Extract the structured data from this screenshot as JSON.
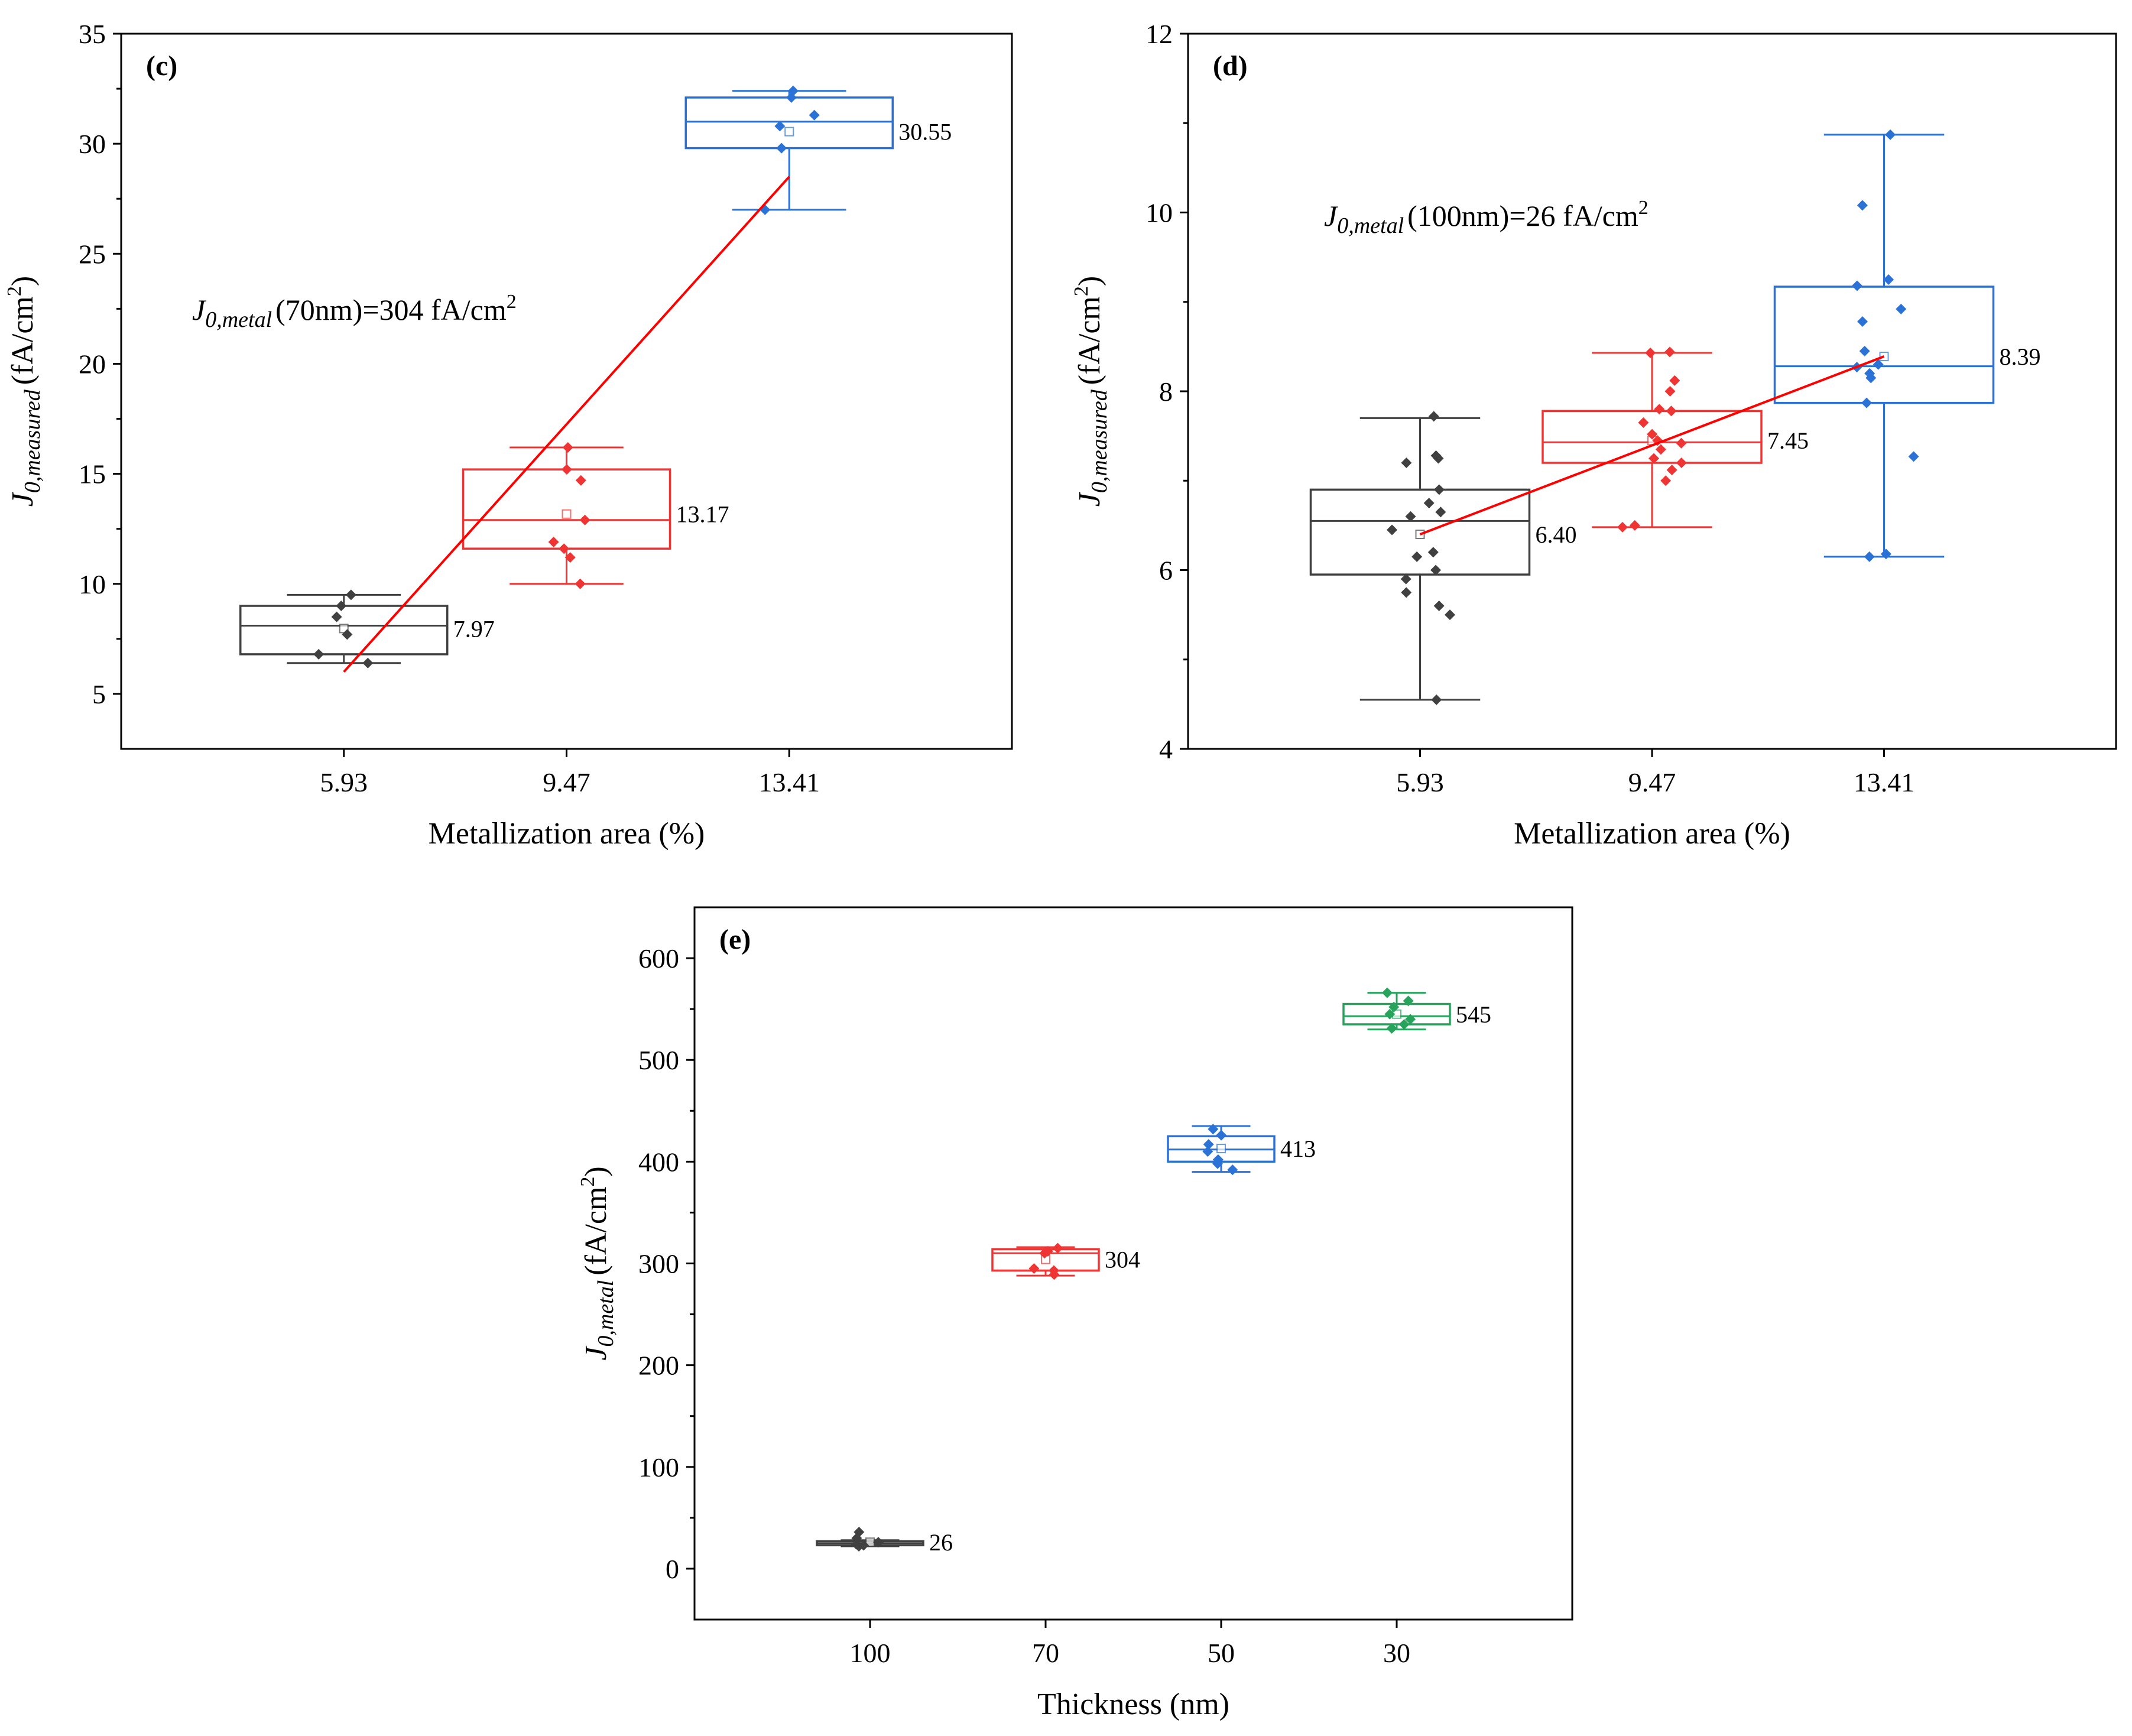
{
  "figure": {
    "colors": {
      "dark": "#404040",
      "red": "#ef3434",
      "blue": "#2a72d6",
      "green": "#27a35c",
      "fit": "#ff0000",
      "axis": "#000000"
    }
  },
  "chart_data": [
    {
      "type": "box",
      "panel_label": "(c)",
      "xlabel": "Metallization area (%)",
      "ylabel": {
        "main": "J",
        "sub": "0,measured",
        "unit": "(fA/cm",
        "sup": "2",
        "close": ")"
      },
      "annotation": {
        "main": "J",
        "sub": "0,metal",
        "rest": "(70nm)=304 fA/cm",
        "sup": "2"
      },
      "categories": [
        "5.93",
        "9.47",
        "13.41"
      ],
      "ylim": [
        2.5,
        35
      ],
      "yticks": [
        5,
        10,
        15,
        20,
        25,
        30,
        35
      ],
      "y_tick_labels": [
        "5",
        "10",
        "15",
        "20",
        "25",
        "30",
        "35"
      ],
      "grid": false,
      "boxes": [
        {
          "category": "5.93",
          "color": "dark",
          "whisker_low": 6.4,
          "q1": 6.8,
          "median": 8.1,
          "q3": 9.0,
          "whisker_high": 9.5,
          "mean": 7.97,
          "mean_label": "7.97",
          "points": [
            6.4,
            6.8,
            7.7,
            8.5,
            9.0,
            9.5
          ]
        },
        {
          "category": "9.47",
          "color": "red",
          "whisker_low": 10.0,
          "q1": 11.6,
          "median": 12.9,
          "q3": 15.2,
          "whisker_high": 16.2,
          "mean": 13.17,
          "mean_label": "13.17",
          "points": [
            10.0,
            11.2,
            11.6,
            11.9,
            12.9,
            14.7,
            15.2,
            16.2
          ]
        },
        {
          "category": "13.41",
          "color": "blue",
          "whisker_low": 27.0,
          "q1": 29.8,
          "median": 31.0,
          "q3": 32.1,
          "whisker_high": 32.4,
          "mean": 30.55,
          "mean_label": "30.55",
          "points": [
            27.0,
            29.8,
            30.8,
            31.3,
            32.1,
            32.4
          ]
        }
      ],
      "fit_line": {
        "x": [
          "5.93",
          "13.41"
        ],
        "y": [
          6.0,
          28.5
        ]
      }
    },
    {
      "type": "box",
      "panel_label": "(d)",
      "xlabel": "Metallization area (%)",
      "ylabel": {
        "main": "J",
        "sub": "0,measured",
        "unit": "(fA/cm",
        "sup": "2",
        "close": ")"
      },
      "annotation": {
        "main": "J",
        "sub": "0,metal",
        "rest": "(100nm)=26 fA/cm",
        "sup": "2"
      },
      "categories": [
        "5.93",
        "9.47",
        "13.41"
      ],
      "ylim": [
        4,
        12
      ],
      "yticks": [
        4,
        6,
        8,
        10,
        12
      ],
      "y_tick_labels": [
        "4",
        "6",
        "8",
        "10",
        "12"
      ],
      "grid": false,
      "boxes": [
        {
          "category": "5.93",
          "color": "dark",
          "whisker_low": 4.55,
          "q1": 5.95,
          "median": 6.55,
          "q3": 6.9,
          "whisker_high": 7.7,
          "mean": 6.4,
          "mean_label": "6.40",
          "points": [
            4.55,
            5.5,
            5.6,
            5.75,
            5.9,
            6.0,
            6.15,
            6.2,
            6.45,
            6.6,
            6.65,
            6.75,
            6.9,
            7.2,
            7.25,
            7.28,
            7.72
          ]
        },
        {
          "category": "9.47",
          "color": "red",
          "whisker_low": 6.48,
          "q1": 7.2,
          "median": 7.43,
          "q3": 7.78,
          "whisker_high": 8.43,
          "mean": 7.45,
          "mean_label": "7.45",
          "points": [
            6.48,
            6.5,
            7.0,
            7.12,
            7.2,
            7.25,
            7.35,
            7.42,
            7.45,
            7.52,
            7.65,
            7.78,
            7.8,
            8.0,
            8.12,
            8.43,
            8.44
          ]
        },
        {
          "category": "13.41",
          "color": "blue",
          "whisker_low": 6.15,
          "q1": 7.87,
          "median": 8.28,
          "q3": 9.17,
          "whisker_high": 10.87,
          "mean": 8.39,
          "mean_label": "8.39",
          "points": [
            6.15,
            6.18,
            7.27,
            7.87,
            8.15,
            8.2,
            8.27,
            8.3,
            8.45,
            8.78,
            8.92,
            9.18,
            9.25,
            10.08,
            10.87
          ]
        }
      ],
      "fit_line": {
        "x": [
          "5.93",
          "13.41"
        ],
        "y": [
          6.4,
          8.39
        ]
      }
    },
    {
      "type": "box",
      "panel_label": "(e)",
      "xlabel": "Thickness  (nm)",
      "ylabel": {
        "main": "J",
        "sub": "0,metal",
        "unit": "(fA/cm",
        "sup": "2",
        "close": ")"
      },
      "categories": [
        "100",
        "70",
        "50",
        "30"
      ],
      "ylim": [
        -50,
        650
      ],
      "yticks": [
        0,
        100,
        200,
        300,
        400,
        500,
        600
      ],
      "y_tick_labels": [
        "0",
        "100",
        "200",
        "300",
        "400",
        "500",
        "600"
      ],
      "grid": false,
      "boxes": [
        {
          "category": "100",
          "color": "dark",
          "whisker_low": 22,
          "q1": 23,
          "median": 25,
          "q3": 27,
          "whisker_high": 28,
          "mean": 26,
          "mean_label": "26",
          "points": [
            22,
            23,
            24,
            26,
            30,
            36
          ]
        },
        {
          "category": "70",
          "color": "red",
          "whisker_low": 288,
          "q1": 293,
          "median": 310,
          "q3": 314,
          "whisker_high": 316,
          "mean": 304,
          "mean_label": "304",
          "points": [
            289,
            293,
            295,
            310,
            312,
            315
          ]
        },
        {
          "category": "50",
          "color": "blue",
          "whisker_low": 390,
          "q1": 400,
          "median": 412,
          "q3": 425,
          "whisker_high": 435,
          "mean": 413,
          "mean_label": "413",
          "points": [
            392,
            398,
            402,
            410,
            417,
            426,
            432
          ]
        },
        {
          "category": "30",
          "color": "green",
          "whisker_low": 530,
          "q1": 535,
          "median": 543,
          "q3": 555,
          "whisker_high": 566,
          "mean": 545,
          "mean_label": "545",
          "points": [
            531,
            535,
            540,
            545,
            552,
            558,
            566
          ]
        }
      ]
    }
  ]
}
